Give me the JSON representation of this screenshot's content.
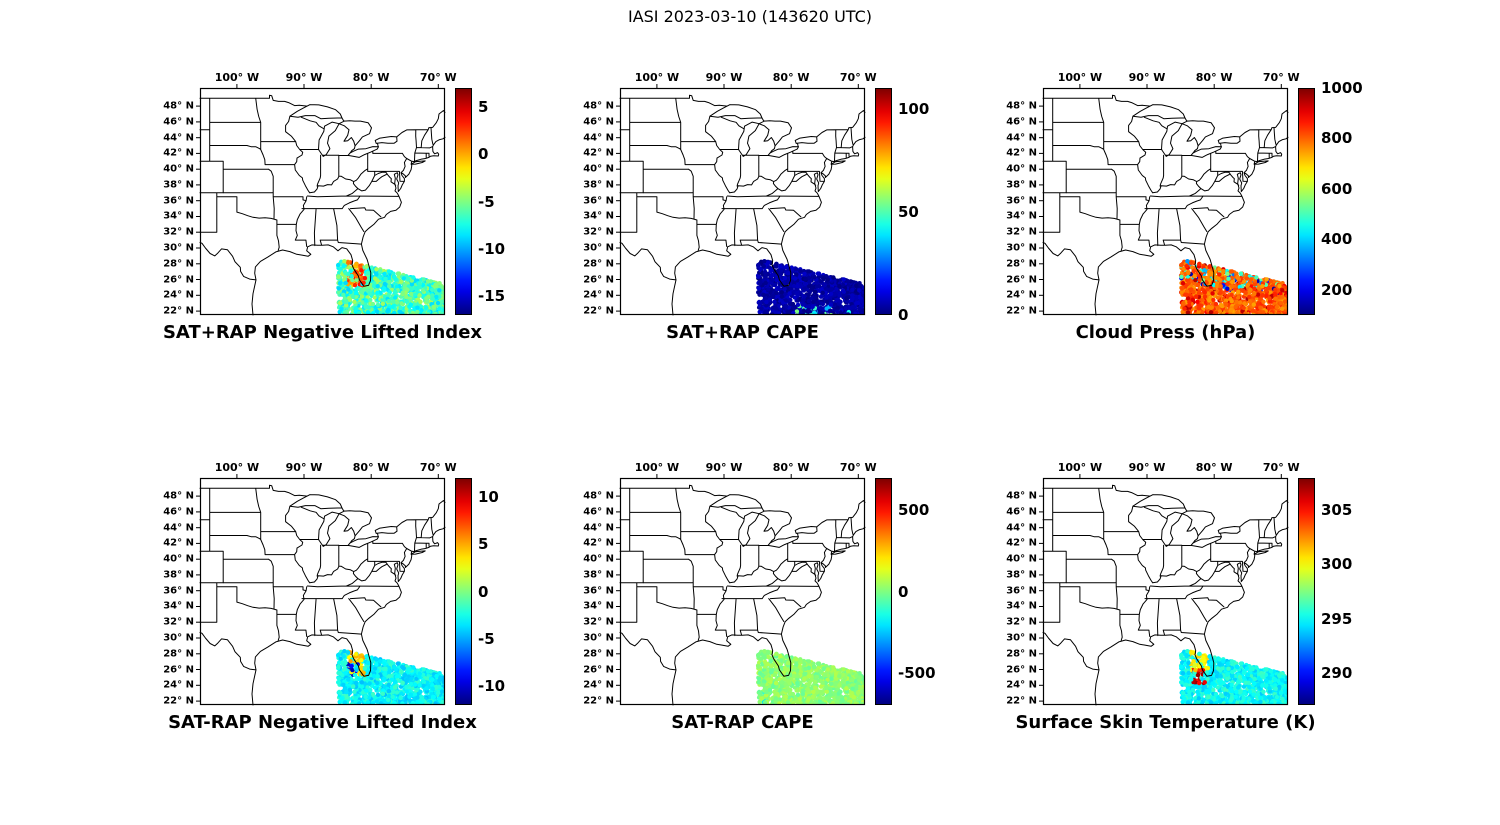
{
  "title": "IASI 2023-03-10 (143620 UTC)",
  "axes": {
    "lon_range": [
      -105.5,
      -69.0
    ],
    "lat_range": [
      21.5,
      50.3
    ],
    "lon_ticks": [
      {
        "value": -100,
        "label": "100° W"
      },
      {
        "value": -90,
        "label": "90° W"
      },
      {
        "value": -80,
        "label": "80° W"
      },
      {
        "value": -70,
        "label": "70° W"
      }
    ],
    "lat_ticks": [
      {
        "value": 48,
        "label": "48° N"
      },
      {
        "value": 46,
        "label": "46° N"
      },
      {
        "value": 44,
        "label": "44° N"
      },
      {
        "value": 42,
        "label": "42° N"
      },
      {
        "value": 40,
        "label": "40° N"
      },
      {
        "value": 38,
        "label": "38° N"
      },
      {
        "value": 36,
        "label": "36° N"
      },
      {
        "value": 34,
        "label": "34° N"
      },
      {
        "value": 32,
        "label": "32° N"
      },
      {
        "value": 30,
        "label": "30° N"
      },
      {
        "value": 28,
        "label": "28° N"
      },
      {
        "value": 26,
        "label": "26° N"
      },
      {
        "value": 24,
        "label": "24° N"
      },
      {
        "value": 22,
        "label": "22° N"
      }
    ]
  },
  "swath": {
    "lon_min": -85.0,
    "lon_max": -69.1,
    "lat_bottom": 21.4,
    "lat_top_west": 28.6,
    "lat_top_east": 25.4,
    "n_points": 1150,
    "seed": 1234,
    "dot_radius": 2.2
  },
  "chart_data": [
    {
      "type": "scatter",
      "title": "SAT+RAP Negative Lifted Index",
      "colorbar": {
        "min": -17,
        "max": 7,
        "colormap": "jet",
        "ticks": [
          {
            "value": 5,
            "label": "5"
          },
          {
            "value": 0,
            "label": "0"
          },
          {
            "value": -5,
            "label": "-5"
          },
          {
            "value": -10,
            "label": "-10"
          },
          {
            "value": -15,
            "label": "-15"
          }
        ]
      },
      "value_model": {
        "base": -6.5,
        "noise": 2.5,
        "features": [
          {
            "name": "florida-coast-positive",
            "lon": [
              -83.6,
              -80.9
            ],
            "lat": [
              25.2,
              28.6
            ],
            "prob": 0.8,
            "value": 1.5,
            "spread": 2.5
          }
        ]
      }
    },
    {
      "type": "scatter",
      "title": "SAT+RAP CAPE",
      "colorbar": {
        "min": 0,
        "max": 110,
        "colormap": "jet",
        "ticks": [
          {
            "value": 100,
            "label": "100"
          },
          {
            "value": 50,
            "label": "50"
          },
          {
            "value": 0,
            "label": "0"
          }
        ]
      },
      "value_model": {
        "base": 4,
        "noise": 4,
        "features": [
          {
            "name": "southern-edge-moderate",
            "lon": [
              -80.5,
              -69.1
            ],
            "lat": [
              21.4,
              22.8
            ],
            "prob": 0.12,
            "value": 45,
            "spread": 12
          }
        ]
      }
    },
    {
      "type": "scatter",
      "title": "Cloud Press (hPa)",
      "colorbar": {
        "min": 100,
        "max": 1000,
        "colormap": "jet",
        "ticks": [
          {
            "value": 1000,
            "label": "1000"
          },
          {
            "value": 800,
            "label": "800"
          },
          {
            "value": 600,
            "label": "600"
          },
          {
            "value": 400,
            "label": "400"
          },
          {
            "value": 200,
            "label": "200"
          }
        ]
      },
      "value_model": {
        "base": 800,
        "noise": 60,
        "features": [
          {
            "name": "mid-level-cloud",
            "lon": [
              -85.0,
              -69.1
            ],
            "lat": [
              25.0,
              28.6
            ],
            "prob": 0.22,
            "value": 430,
            "spread": 130
          },
          {
            "name": "high-cloud",
            "lon": [
              -85.0,
              -69.1
            ],
            "lat": [
              24.0,
              28.6
            ],
            "prob": 0.05,
            "value": 180,
            "spread": 60
          },
          {
            "name": "low-cloud-red",
            "lon": [
              -85.0,
              -69.1
            ],
            "lat": [
              21.4,
              28.6
            ],
            "prob": 0.1,
            "value": 920,
            "spread": 50
          }
        ]
      }
    },
    {
      "type": "scatter",
      "title": "SAT-RAP Negative Lifted Index",
      "colorbar": {
        "min": -12,
        "max": 12,
        "colormap": "jet",
        "ticks": [
          {
            "value": 10,
            "label": "10"
          },
          {
            "value": 5,
            "label": "5"
          },
          {
            "value": 0,
            "label": "0"
          },
          {
            "value": -5,
            "label": "-5"
          },
          {
            "value": -10,
            "label": "-10"
          }
        ]
      },
      "value_model": {
        "base": -3,
        "noise": 1.5,
        "features": [
          {
            "name": "florida-coast-positive",
            "lon": [
              -83.4,
              -80.9
            ],
            "lat": [
              25.3,
              28.5
            ],
            "prob": 0.75,
            "value": 4,
            "spread": 1.5
          },
          {
            "name": "deep-negative-dots",
            "lon": [
              -83.6,
              -82.0
            ],
            "lat": [
              25.0,
              26.8
            ],
            "prob": 0.35,
            "value": -10,
            "spread": 1.5
          }
        ]
      }
    },
    {
      "type": "scatter",
      "title": "SAT-RAP CAPE",
      "colorbar": {
        "min": -700,
        "max": 700,
        "colormap": "jet",
        "ticks": [
          {
            "value": 500,
            "label": "500"
          },
          {
            "value": 0,
            "label": "0"
          },
          {
            "value": -500,
            "label": "-500"
          }
        ]
      },
      "value_model": {
        "base": 20,
        "noise": 60,
        "features": [
          {
            "name": "slight-negative-west",
            "lon": [
              -85.0,
              -83.0
            ],
            "lat": [
              21.4,
              23.2
            ],
            "prob": 0.15,
            "value": -180,
            "spread": 80
          }
        ]
      }
    },
    {
      "type": "scatter",
      "title": "Surface Skin Temperature (K)",
      "colorbar": {
        "min": 287,
        "max": 308,
        "colormap": "jet",
        "ticks": [
          {
            "value": 305,
            "label": "305"
          },
          {
            "value": 300,
            "label": "300"
          },
          {
            "value": 295,
            "label": "295"
          },
          {
            "value": 290,
            "label": "290"
          }
        ]
      },
      "value_model": {
        "base": 295,
        "noise": 1.2,
        "features": [
          {
            "name": "florida-warm",
            "lon": [
              -83.6,
              -80.9
            ],
            "lat": [
              25.6,
              28.6
            ],
            "prob": 0.7,
            "value": 300.3,
            "spread": 1.3
          },
          {
            "name": "hot-cluster",
            "lon": [
              -83.3,
              -81.3
            ],
            "lat": [
              24.2,
              26.0
            ],
            "prob": 0.7,
            "value": 306,
            "spread": 1.6
          }
        ]
      }
    }
  ]
}
